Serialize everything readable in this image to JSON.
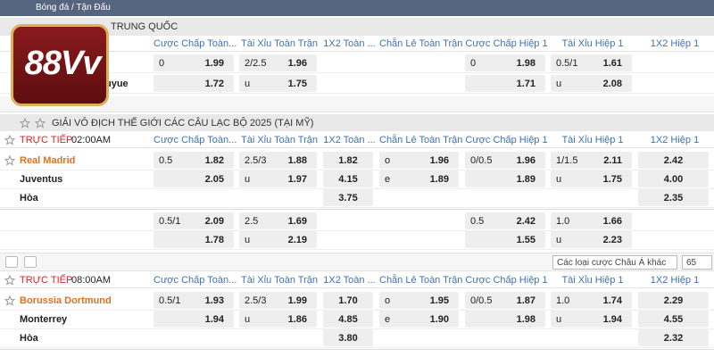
{
  "breadcrumb": "Bóng đá / Tận Đấu",
  "logo": "88Vv",
  "columns": [
    "Cược Chấp Toàn...",
    "Tài Xỉu Toàn Trận",
    "1X2 Toàn ...",
    "Chẵn Lẻ Toàn Trận",
    "Cược Chấp Hiệp 1",
    "Tài Xỉu Hiệp 1",
    "1X2 Hiệp 1"
  ],
  "sections": [
    {
      "league": "TRUNG QUỐC",
      "rows": [
        {
          "cells": [
            [
              "0",
              "1.99"
            ],
            [
              "2/2.5",
              "1.96"
            ],
            null,
            null,
            [
              "0",
              "1.98"
            ],
            [
              "0.5/1",
              "1.61"
            ],
            null
          ]
        },
        {
          "team": "uyue",
          "cells": [
            [
              null,
              "1.72"
            ],
            [
              "u",
              "1.75"
            ],
            null,
            null,
            [
              null,
              "1.71"
            ],
            [
              "u",
              "2.08"
            ],
            null
          ]
        }
      ]
    },
    {
      "league": "GIẢI VÔ ĐỊCH THẾ GIỚI CÁC CÂU LẠC BỘ 2025 (TẠI MỸ)",
      "status": "TRỰC TIẾP",
      "time": "02:00AM",
      "rows": [
        {
          "team": "Real Madrid",
          "highlight": true,
          "cells": [
            [
              "0.5",
              "1.82"
            ],
            [
              "2.5/3",
              "1.88"
            ],
            [
              null,
              "1.82"
            ],
            [
              "o",
              "1.96"
            ],
            [
              "0/0.5",
              "1.96"
            ],
            [
              "1/1.5",
              "2.11"
            ],
            [
              null,
              "2.42"
            ]
          ]
        },
        {
          "team": "Juventus",
          "cells": [
            [
              null,
              "2.05"
            ],
            [
              "u",
              "1.97"
            ],
            [
              null,
              "4.15"
            ],
            [
              "e",
              "1.89"
            ],
            [
              null,
              "1.89"
            ],
            [
              "u",
              "1.75"
            ],
            [
              null,
              "4.00"
            ]
          ]
        },
        {
          "team": "Hòa",
          "cells": [
            null,
            null,
            [
              null,
              "3.75"
            ],
            null,
            null,
            null,
            [
              null,
              "2.35"
            ]
          ]
        },
        {
          "cells": [
            [
              "0.5/1",
              "2.09"
            ],
            [
              "2.5",
              "1.69"
            ],
            null,
            null,
            [
              "0.5",
              "2.42"
            ],
            [
              "1.0",
              "1.66"
            ],
            null
          ]
        },
        {
          "cells": [
            [
              null,
              "1.78"
            ],
            [
              "u",
              "2.19"
            ],
            null,
            null,
            [
              null,
              "1.55"
            ],
            [
              "u",
              "2.23"
            ],
            null
          ]
        }
      ]
    },
    {
      "status": "TRỰC TIẾP",
      "time": "08:00AM",
      "rows": [
        {
          "team": "Borussia Dortmund",
          "highlight": true,
          "cells": [
            [
              "0.5/1",
              "1.93"
            ],
            [
              "2.5/3",
              "1.99"
            ],
            [
              null,
              "1.70"
            ],
            [
              "o",
              "1.95"
            ],
            [
              "0/0.5",
              "1.87"
            ],
            [
              "1.0",
              "1.74"
            ],
            [
              null,
              "2.29"
            ]
          ]
        },
        {
          "team": "Monterrey",
          "cells": [
            [
              null,
              "1.94"
            ],
            [
              "u",
              "1.86"
            ],
            [
              null,
              "4.85"
            ],
            [
              "e",
              "1.90"
            ],
            [
              null,
              "1.98"
            ],
            [
              "u",
              "1.94"
            ],
            [
              null,
              "4.55"
            ]
          ]
        },
        {
          "team": "Hòa",
          "cells": [
            null,
            null,
            [
              null,
              "3.80"
            ],
            null,
            null,
            null,
            [
              null,
              "2.32"
            ]
          ]
        }
      ]
    }
  ],
  "toolbar": {
    "market": "Các loại cược Châu Á khác",
    "count": "65"
  }
}
